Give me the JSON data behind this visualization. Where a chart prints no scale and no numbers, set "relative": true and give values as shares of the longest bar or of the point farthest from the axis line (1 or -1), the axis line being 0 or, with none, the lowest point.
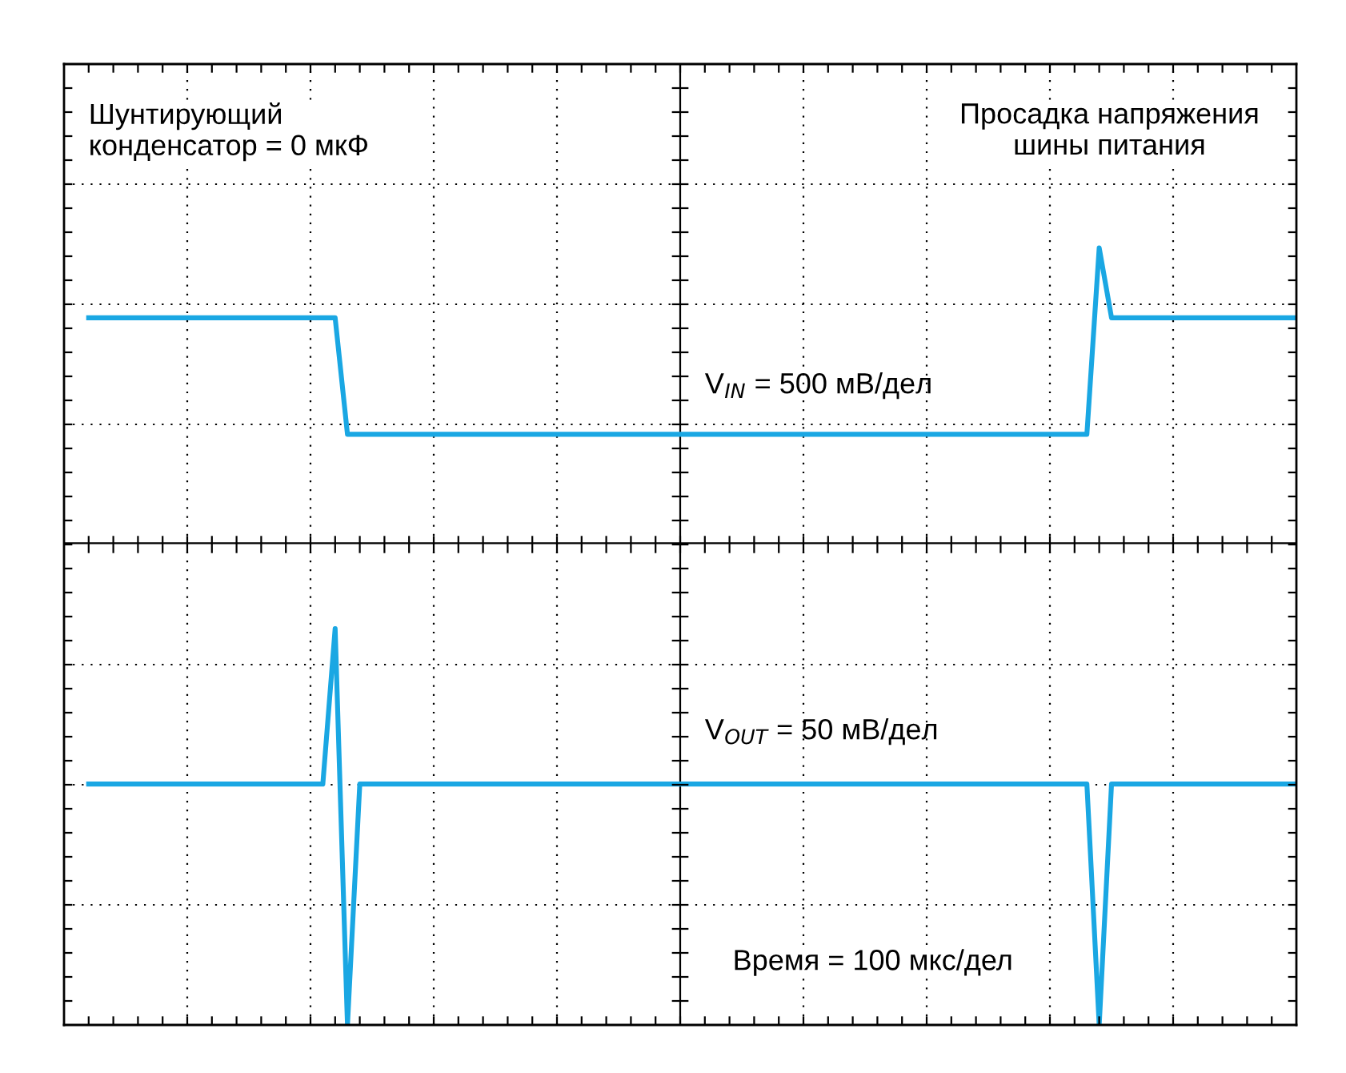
{
  "chart_data": {
    "type": "line",
    "relative": true,
    "grid": true,
    "ref_lines": [
      {
        "axis": "y",
        "value": 0.62,
        "color": "#000000",
        "line_style": "solid"
      }
    ],
    "line_style": "solid",
    "marker": "none",
    "categories": [
      null,
      null,
      null,
      null,
      null,
      null,
      null,
      null,
      null,
      null,
      null,
      null,
      null,
      null,
      null,
      null,
      null,
      null,
      null,
      null,
      null,
      null,
      null,
      null,
      null,
      null,
      null,
      null,
      null,
      null,
      null,
      null,
      null,
      null,
      null,
      null,
      null,
      null,
      null,
      null,
      null,
      null,
      null,
      null,
      null,
      null,
      null,
      null,
      null,
      null,
      null,
      null,
      null,
      null,
      null,
      null,
      null,
      null,
      null,
      null,
      null,
      null,
      null,
      null,
      null,
      null,
      null,
      null,
      null,
      null,
      null,
      null,
      null,
      null,
      null,
      null,
      null,
      null,
      null,
      null,
      null,
      null,
      null,
      null,
      null,
      null,
      null,
      null,
      null,
      null,
      null,
      null,
      null,
      null,
      null,
      null,
      null,
      null,
      null,
      null,
      null
    ],
    "series": [
      {
        "name": "V$_{IN}$ = 500 мВ/дел",
        "color": "#1aa7e3",
        "values": [
          null,
          null,
          0.91,
          0.91,
          0.91,
          0.91,
          0.91,
          0.91,
          0.91,
          0.91,
          0.91,
          0.91,
          0.91,
          0.91,
          0.91,
          0.91,
          0.91,
          0.91,
          0.91,
          0.91,
          0.91,
          0.91,
          0.91,
          0.76,
          0.76,
          0.76,
          0.76,
          0.76,
          0.76,
          0.76,
          0.76,
          0.76,
          0.76,
          0.76,
          0.76,
          0.76,
          0.76,
          0.76,
          0.76,
          0.76,
          0.76,
          0.76,
          0.76,
          0.76,
          0.76,
          0.76,
          0.76,
          0.76,
          0.76,
          0.76,
          0.76,
          0.76,
          0.76,
          0.76,
          0.76,
          0.76,
          0.76,
          0.76,
          0.76,
          0.76,
          0.76,
          0.76,
          0.76,
          0.76,
          0.76,
          0.76,
          0.76,
          0.76,
          0.76,
          0.76,
          0.76,
          0.76,
          0.76,
          0.76,
          0.76,
          0.76,
          0.76,
          0.76,
          0.76,
          0.76,
          0.76,
          0.76,
          0.76,
          0.76,
          1,
          0.91,
          0.91,
          0.91,
          0.91,
          0.91,
          0.91,
          0.91,
          0.91,
          0.91,
          0.91,
          0.91,
          0.91,
          0.91,
          0.91,
          0.91,
          0.91
        ]
      },
      {
        "name": "V$_{OUT}$ = 50 мВ/дел",
        "color": "#1aa7e3",
        "values": [
          null,
          null,
          0.31,
          0.31,
          0.31,
          0.31,
          0.31,
          0.31,
          0.31,
          0.31,
          0.31,
          0.31,
          0.31,
          0.31,
          0.31,
          0.31,
          0.31,
          0.31,
          0.31,
          0.31,
          0.31,
          0.31,
          0.51,
          0,
          0.31,
          0.31,
          0.31,
          0.31,
          0.31,
          0.31,
          0.31,
          0.31,
          0.31,
          0.31,
          0.31,
          0.31,
          0.31,
          0.31,
          0.31,
          0.31,
          0.31,
          0.31,
          0.31,
          0.31,
          0.31,
          0.31,
          0.31,
          0.31,
          0.31,
          0.31,
          0.31,
          0.31,
          0.31,
          0.31,
          0.31,
          0.31,
          0.31,
          0.31,
          0.31,
          0.31,
          0.31,
          0.31,
          0.31,
          0.31,
          0.31,
          0.31,
          0.31,
          0.31,
          0.31,
          0.31,
          0.31,
          0.31,
          0.31,
          0.31,
          0.31,
          0.31,
          0.31,
          0.31,
          0.31,
          0.31,
          0.31,
          0.31,
          0.31,
          0.31,
          0,
          0.31,
          0.31,
          0.31,
          0.31,
          0.31,
          0.31,
          0.31,
          0.31,
          0.31,
          0.31,
          0.31,
          0.31,
          0.31,
          0.31,
          0.31,
          0.31
        ]
      }
    ],
    "annotations": [
      "Шунтирующий\nконденсатор = 0 мкФ",
      "Просадка напряжения\nшины питания",
      "Время = 100 мкс/дел"
    ]
  }
}
